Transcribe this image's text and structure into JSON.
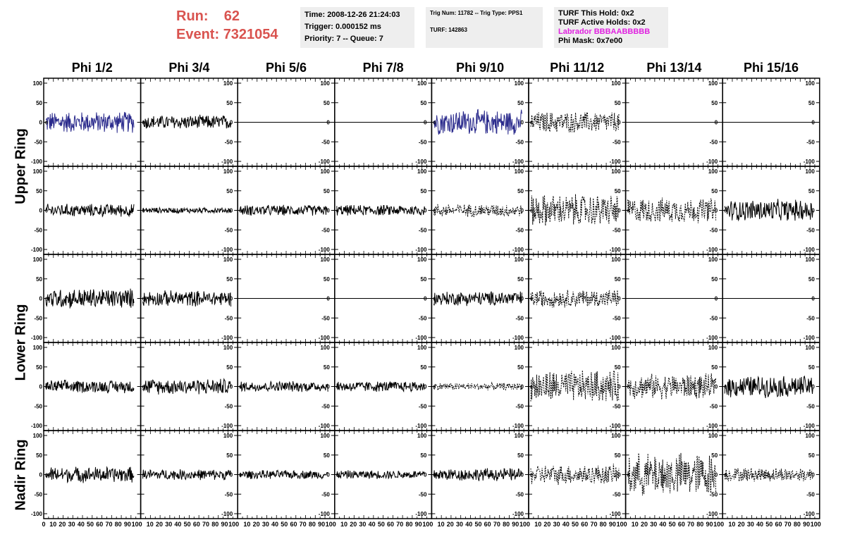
{
  "header": {
    "run_label": "Run:",
    "run_value": "62",
    "event_label": "Event:",
    "event_value": "7321054",
    "time": "Time: 2008-12-26 21:24:03",
    "trigger": "Trigger: 0.000152 ms",
    "priority": "Priority: 7 -- Queue: 7",
    "trig_num": "Trig Num: 11782 -- Trig Type: PPS1",
    "turf": "TURF: 142863",
    "turf_this_hold": "TURF This Hold: 0x2",
    "turf_active_holds": "TURF Active Holds: 0x2",
    "labrador": "Labrador BBBAABBBBB",
    "phi_mask": "Phi Mask: 0x7e00"
  },
  "columns": [
    "Phi 1/2",
    "Phi 3/4",
    "Phi 5/6",
    "Phi 7/8",
    "Phi 9/10",
    "Phi 11/12",
    "Phi 13/14",
    "Phi 15/16"
  ],
  "rings": [
    "Upper Ring",
    "Lower Ring",
    "Nadir Ring"
  ],
  "y_ticks": [
    "100",
    "50",
    "0",
    "-50",
    "-100"
  ],
  "x_ticks_first": [
    "0",
    "10",
    "20",
    "30",
    "40",
    "50",
    "60",
    "70",
    "80",
    "90",
    "100"
  ],
  "x_ticks_other": [
    "10",
    "20",
    "30",
    "40",
    "50",
    "60",
    "70",
    "80",
    "90",
    "100"
  ],
  "colors": {
    "accent_red": "#d9534f",
    "labrador_magenta": "#e020e0",
    "trace_blue": "#2a2a8c",
    "trace_black": "#000000"
  },
  "chart_data": {
    "type": "line",
    "x_range": [
      0,
      100
    ],
    "y_range": [
      -100,
      100
    ],
    "layout_note_rows": [
      "upper-1",
      "upper-2",
      "lower-1",
      "lower-2",
      "nadir"
    ],
    "panels": [
      [
        "blue:30",
        "black:20",
        "flat",
        "flat",
        "blue:35",
        "dashed:30",
        "flat",
        "flat"
      ],
      [
        "black:18",
        "black:8",
        "black:15",
        "black:15",
        "dashed:18",
        "dashed:45",
        "dashed:35",
        "black:30"
      ],
      [
        "black:28",
        "black:22",
        "flat",
        "flat",
        "black:20",
        "dashed:25",
        "flat",
        "flat"
      ],
      [
        "black:18",
        "black:22",
        "black:15",
        "black:15",
        "dashed:10",
        "dashed:45",
        "dashed:35",
        "black:30"
      ],
      [
        "black:22",
        "black:15",
        "black:12",
        "black:12",
        "black:18",
        "dashed:28",
        "dashed:60",
        "dashed:20"
      ]
    ]
  }
}
